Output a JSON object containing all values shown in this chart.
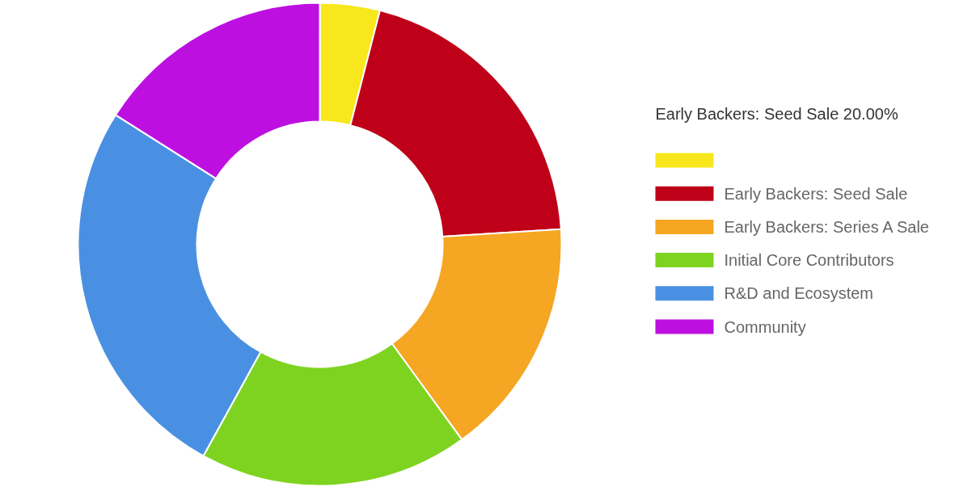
{
  "chart_data": {
    "type": "donut",
    "categories": [
      null,
      "Early Backers:  Seed Sale",
      "Early Backers:  Series A Sale",
      "Initial Core Contributors",
      "R&D and Ecosystem",
      "Community"
    ],
    "values": [
      4,
      20,
      16,
      18,
      26,
      16
    ],
    "colors": [
      "#f8e71c",
      "#be0018",
      "#f5a623",
      "#7ed321",
      "#4a90e2",
      "#bd10e0"
    ],
    "legend": "right",
    "annotations": [
      "Early Backers:  Seed Sale 20.00%"
    ]
  }
}
